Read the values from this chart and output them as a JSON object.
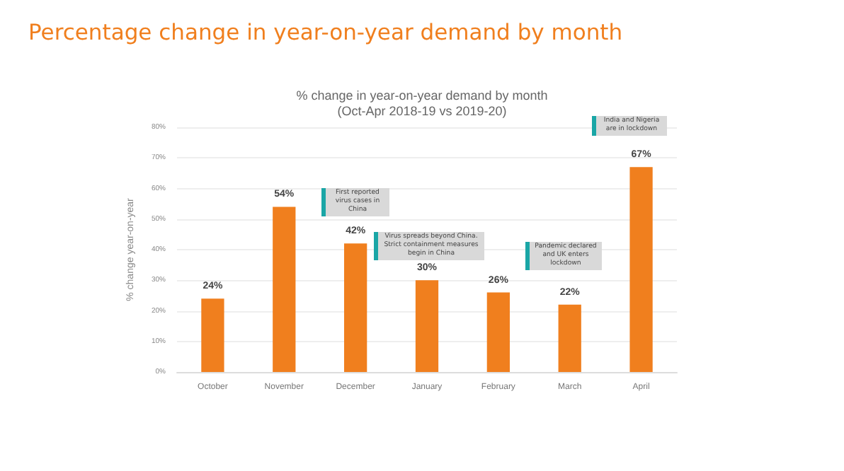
{
  "chart_data": {
    "type": "bar",
    "title": "Percentage change in year-on-year demand by month",
    "subtitle": "% change in year-on-year demand by month\n(Oct-Apr 2018-19 vs 2019-20)",
    "ylabel": "% change year-on-year",
    "categories": [
      "October",
      "November",
      "December",
      "January",
      "February",
      "March",
      "April"
    ],
    "values": [
      24,
      54,
      42,
      30,
      26,
      22,
      67
    ],
    "value_labels": [
      "24%",
      "54%",
      "42%",
      "30%",
      "26%",
      "22%",
      "67%"
    ],
    "color": "#f07f1e",
    "ylim": [
      0,
      80
    ],
    "yticks": [
      {
        "value": 0,
        "label": "0%"
      },
      {
        "value": 10,
        "label": "10%"
      },
      {
        "value": 20,
        "label": "20%"
      },
      {
        "value": 30,
        "label": "30%"
      },
      {
        "value": 40,
        "label": "40%"
      },
      {
        "value": 50,
        "label": "50%"
      },
      {
        "value": 60,
        "label": "60%"
      },
      {
        "value": 70,
        "label": "70%"
      },
      {
        "value": 80,
        "label": "80%"
      }
    ],
    "grid": "y",
    "annotations": [
      "First reported virus cases in China",
      "Virus spreads beyond China. Strict containment measures begin in China",
      "Pandemic declared and UK enters lockdown",
      "India and Nigeria are in lockdown"
    ]
  }
}
